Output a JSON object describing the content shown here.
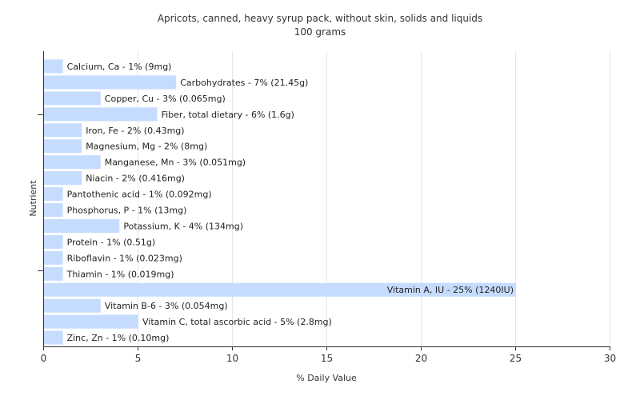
{
  "chart_data": {
    "type": "bar",
    "orientation": "horizontal",
    "title": "Apricots, canned, heavy syrup pack, without skin, solids and liquids",
    "subtitle": "100 grams",
    "xlabel": "% Daily Value",
    "ylabel": "Nutrient",
    "xlim": [
      0,
      30
    ],
    "xticks": [
      0,
      5,
      10,
      15,
      20,
      25,
      30
    ],
    "grid": true,
    "bar_color": "#c6dcff",
    "categories": [
      "Calcium, Ca",
      "Carbohydrates",
      "Copper, Cu",
      "Fiber, total dietary",
      "Iron, Fe",
      "Magnesium, Mg",
      "Manganese, Mn",
      "Niacin",
      "Pantothenic acid",
      "Phosphorus, P",
      "Potassium, K",
      "Protein",
      "Riboflavin",
      "Thiamin",
      "Vitamin A, IU",
      "Vitamin B-6",
      "Vitamin C, total ascorbic acid",
      "Zinc, Zn"
    ],
    "values": [
      1,
      7,
      3,
      6,
      2,
      2,
      3,
      2,
      1,
      1,
      4,
      1,
      1,
      1,
      25,
      3,
      5,
      1
    ],
    "labels": [
      "Calcium, Ca - 1% (9mg)",
      "Carbohydrates - 7% (21.45g)",
      "Copper, Cu - 3% (0.065mg)",
      "Fiber, total dietary - 6% (1.6g)",
      "Iron, Fe - 2% (0.43mg)",
      "Magnesium, Mg - 2% (8mg)",
      "Manganese, Mn - 3% (0.051mg)",
      "Niacin - 2% (0.416mg)",
      "Pantothenic acid - 1% (0.092mg)",
      "Phosphorus, P - 1% (13mg)",
      "Potassium, K - 4% (134mg)",
      "Protein - 1% (0.51g)",
      "Riboflavin - 1% (0.023mg)",
      "Thiamin - 1% (0.019mg)",
      "Vitamin A, IU - 25% (1240IU)",
      "Vitamin B-6 - 3% (0.054mg)",
      "Vitamin C, total ascorbic acid - 5% (2.8mg)",
      "Zinc, Zn - 1% (0.10mg)"
    ]
  }
}
